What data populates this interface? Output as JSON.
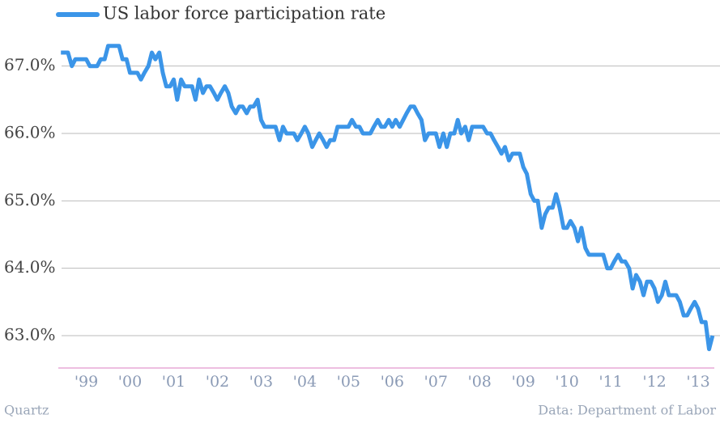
{
  "chart_data": {
    "type": "line",
    "series": [
      {
        "name": "US labor force participation rate",
        "color": "#3b95e8",
        "values": [
          67.2,
          67.2,
          67.2,
          67.0,
          67.1,
          67.1,
          67.1,
          67.1,
          67.0,
          67.0,
          67.0,
          67.1,
          67.1,
          67.3,
          67.3,
          67.3,
          67.3,
          67.1,
          67.1,
          66.9,
          66.9,
          66.9,
          66.8,
          66.9,
          67.0,
          67.2,
          67.1,
          67.2,
          66.9,
          66.7,
          66.7,
          66.8,
          66.5,
          66.8,
          66.7,
          66.7,
          66.7,
          66.5,
          66.8,
          66.6,
          66.7,
          66.7,
          66.6,
          66.5,
          66.6,
          66.7,
          66.6,
          66.4,
          66.3,
          66.4,
          66.4,
          66.3,
          66.4,
          66.4,
          66.5,
          66.2,
          66.1,
          66.1,
          66.1,
          66.1,
          65.9,
          66.1,
          66.0,
          66.0,
          66.0,
          65.9,
          66.0,
          66.1,
          66.0,
          65.8,
          65.9,
          66.0,
          65.9,
          65.8,
          65.9,
          65.9,
          66.1,
          66.1,
          66.1,
          66.1,
          66.2,
          66.1,
          66.1,
          66.0,
          66.0,
          66.0,
          66.1,
          66.2,
          66.1,
          66.1,
          66.2,
          66.1,
          66.2,
          66.1,
          66.2,
          66.3,
          66.4,
          66.4,
          66.3,
          66.2,
          65.9,
          66.0,
          66.0,
          66.0,
          65.8,
          66.0,
          65.8,
          66.0,
          66.0,
          66.2,
          66.0,
          66.1,
          65.9,
          66.1,
          66.1,
          66.1,
          66.1,
          66.0,
          66.0,
          65.9,
          65.8,
          65.7,
          65.8,
          65.6,
          65.7,
          65.7,
          65.7,
          65.5,
          65.4,
          65.1,
          65.0,
          65.0,
          64.6,
          64.8,
          64.9,
          64.9,
          65.1,
          64.9,
          64.6,
          64.6,
          64.7,
          64.6,
          64.4,
          64.6,
          64.3,
          64.2,
          64.2,
          64.2,
          64.2,
          64.2,
          64.0,
          64.0,
          64.1,
          64.2,
          64.1,
          64.1,
          64.0,
          63.7,
          63.9,
          63.8,
          63.6,
          63.8,
          63.8,
          63.7,
          63.5,
          63.6,
          63.8,
          63.6,
          63.6,
          63.6,
          63.5,
          63.3,
          63.3,
          63.4,
          63.5,
          63.4,
          63.2,
          63.2,
          62.8,
          63.0
        ]
      }
    ],
    "x": [
      1998.92,
      1999.0,
      1999.08,
      1999.17,
      1999.25,
      1999.33,
      1999.42,
      1999.5,
      1999.58,
      1999.67,
      1999.75,
      1999.83,
      1999.92,
      2000.0,
      2000.08,
      2000.17,
      2000.25,
      2000.33,
      2000.42,
      2000.5,
      2000.58,
      2000.67,
      2000.75,
      2000.83,
      2000.92,
      2001.0,
      2001.08,
      2001.17,
      2001.25,
      2001.33,
      2001.42,
      2001.5,
      2001.58,
      2001.67,
      2001.75,
      2001.83,
      2001.92,
      2002.0,
      2002.08,
      2002.17,
      2002.25,
      2002.33,
      2002.42,
      2002.5,
      2002.58,
      2002.67,
      2002.75,
      2002.83,
      2002.92,
      2003.0,
      2003.08,
      2003.17,
      2003.25,
      2003.33,
      2003.42,
      2003.5,
      2003.58,
      2003.67,
      2003.75,
      2003.83,
      2003.92,
      2004.0,
      2004.08,
      2004.17,
      2004.25,
      2004.33,
      2004.42,
      2004.5,
      2004.58,
      2004.67,
      2004.75,
      2004.83,
      2004.92,
      2005.0,
      2005.08,
      2005.17,
      2005.25,
      2005.33,
      2005.42,
      2005.5,
      2005.58,
      2005.67,
      2005.75,
      2005.83,
      2005.92,
      2006.0,
      2006.08,
      2006.17,
      2006.25,
      2006.33,
      2006.42,
      2006.5,
      2006.58,
      2006.67,
      2006.75,
      2006.83,
      2006.92,
      2007.0,
      2007.08,
      2007.17,
      2007.25,
      2007.33,
      2007.42,
      2007.5,
      2007.58,
      2007.67,
      2007.75,
      2007.83,
      2007.92,
      2008.0,
      2008.08,
      2008.17,
      2008.25,
      2008.33,
      2008.42,
      2008.5,
      2008.58,
      2008.67,
      2008.75,
      2008.83,
      2008.92,
      2009.0,
      2009.08,
      2009.17,
      2009.25,
      2009.33,
      2009.42,
      2009.5,
      2009.58,
      2009.67,
      2009.75,
      2009.83,
      2009.92,
      2010.0,
      2010.08,
      2010.17,
      2010.25,
      2010.33,
      2010.42,
      2010.5,
      2010.58,
      2010.67,
      2010.75,
      2010.83,
      2010.92,
      2011.0,
      2011.08,
      2011.17,
      2011.25,
      2011.33,
      2011.42,
      2011.5,
      2011.58,
      2011.67,
      2011.75,
      2011.83,
      2011.92,
      2012.0,
      2012.08,
      2012.17,
      2012.25,
      2012.33,
      2012.42,
      2012.5,
      2012.58,
      2012.67,
      2012.75,
      2012.83,
      2012.92,
      2013.0,
      2013.08,
      2013.17,
      2013.25,
      2013.33,
      2013.42,
      2013.5,
      2013.58,
      2013.67,
      2013.75,
      2013.83
    ],
    "xlim": [
      1998.86,
      2014.0
    ],
    "xticks": [
      {
        "value": 1999.5,
        "label": "'99"
      },
      {
        "value": 2000.5,
        "label": "'00"
      },
      {
        "value": 2001.5,
        "label": "'01"
      },
      {
        "value": 2002.5,
        "label": "'02"
      },
      {
        "value": 2003.5,
        "label": "'03"
      },
      {
        "value": 2004.5,
        "label": "'04"
      },
      {
        "value": 2005.5,
        "label": "'05"
      },
      {
        "value": 2006.5,
        "label": "'06"
      },
      {
        "value": 2007.5,
        "label": "'07"
      },
      {
        "value": 2008.5,
        "label": "'08"
      },
      {
        "value": 2009.5,
        "label": "'09"
      },
      {
        "value": 2010.5,
        "label": "'10"
      },
      {
        "value": 2011.5,
        "label": "'11"
      },
      {
        "value": 2012.5,
        "label": "'12"
      },
      {
        "value": 2013.5,
        "label": "'13"
      }
    ],
    "ylim": [
      62.52,
      67.98
    ],
    "yticks": [
      {
        "value": 63,
        "label": "63.0%"
      },
      {
        "value": 64,
        "label": "64.0%"
      },
      {
        "value": 65,
        "label": "65.0%"
      },
      {
        "value": 66,
        "label": "66.0%"
      },
      {
        "value": 67,
        "label": "67.0%"
      }
    ],
    "grid": true,
    "legend": "top-left",
    "source": "Data: Department of Labor",
    "credit": "Quartz"
  }
}
